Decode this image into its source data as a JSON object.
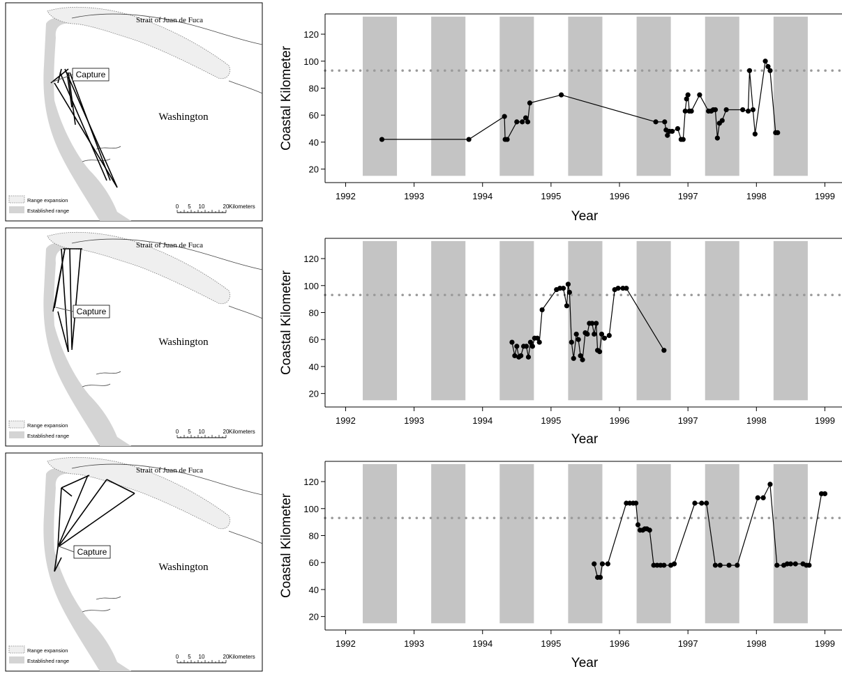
{
  "map": {
    "strait_label": "Strait of Juan de Fuca",
    "region_label": "Washington",
    "capture_label": "Capture",
    "legend_expansion": "Range expansion",
    "legend_established": "Established range",
    "scale_ticks": [
      "0",
      "5",
      "10",
      "20"
    ],
    "scale_unit": "Kilometers"
  },
  "chart_data": [
    {
      "type": "line",
      "xlabel": "Year",
      "ylabel": "Coastal Kilometer",
      "xlim": [
        1991.7,
        1999.25
      ],
      "ylim": [
        10,
        135
      ],
      "xticks": [
        1992,
        1993,
        1994,
        1995,
        1996,
        1997,
        1998,
        1999
      ],
      "yticks": [
        20,
        40,
        60,
        80,
        100,
        120
      ],
      "reference_line_y": 93,
      "shaded_periods": [
        [
          1992.25,
          1992.75
        ],
        [
          1993.25,
          1993.75
        ],
        [
          1994.25,
          1994.75
        ],
        [
          1995.25,
          1995.75
        ],
        [
          1996.25,
          1996.75
        ],
        [
          1997.25,
          1997.75
        ],
        [
          1998.25,
          1998.75
        ]
      ],
      "points": [
        [
          1992.53,
          42
        ],
        [
          1993.8,
          42
        ],
        [
          1994.32,
          59
        ],
        [
          1994.33,
          42
        ],
        [
          1994.36,
          42
        ],
        [
          1994.5,
          55
        ],
        [
          1994.58,
          55
        ],
        [
          1994.63,
          58
        ],
        [
          1994.66,
          55
        ],
        [
          1994.69,
          69
        ],
        [
          1995.15,
          75
        ],
        [
          1996.53,
          55
        ],
        [
          1996.66,
          55
        ],
        [
          1996.68,
          49
        ],
        [
          1996.7,
          45
        ],
        [
          1996.73,
          48
        ],
        [
          1996.77,
          48
        ],
        [
          1996.85,
          50
        ],
        [
          1996.9,
          42
        ],
        [
          1996.93,
          42
        ],
        [
          1996.96,
          63
        ],
        [
          1996.98,
          72
        ],
        [
          1997.0,
          75
        ],
        [
          1997.02,
          63
        ],
        [
          1997.05,
          63
        ],
        [
          1997.17,
          75
        ],
        [
          1997.3,
          63
        ],
        [
          1997.34,
          63
        ],
        [
          1997.37,
          64
        ],
        [
          1997.4,
          64
        ],
        [
          1997.43,
          43
        ],
        [
          1997.46,
          54
        ],
        [
          1997.5,
          56
        ],
        [
          1997.56,
          64
        ],
        [
          1997.8,
          64
        ],
        [
          1997.88,
          63
        ],
        [
          1997.9,
          93
        ],
        [
          1997.95,
          64
        ],
        [
          1997.98,
          46
        ],
        [
          1998.13,
          100
        ],
        [
          1998.17,
          96
        ],
        [
          1998.2,
          93
        ],
        [
          1998.28,
          47
        ],
        [
          1998.31,
          47
        ]
      ]
    },
    {
      "type": "line",
      "xlabel": "Year",
      "ylabel": "Coastal Kilometer",
      "xlim": [
        1991.7,
        1999.25
      ],
      "ylim": [
        10,
        135
      ],
      "xticks": [
        1992,
        1993,
        1994,
        1995,
        1996,
        1997,
        1998,
        1999
      ],
      "yticks": [
        20,
        40,
        60,
        80,
        100,
        120
      ],
      "reference_line_y": 93,
      "shaded_periods": [
        [
          1992.25,
          1992.75
        ],
        [
          1993.25,
          1993.75
        ],
        [
          1994.25,
          1994.75
        ],
        [
          1995.25,
          1995.75
        ],
        [
          1996.25,
          1996.75
        ],
        [
          1997.25,
          1997.75
        ],
        [
          1998.25,
          1998.75
        ]
      ],
      "points": [
        [
          1994.43,
          58
        ],
        [
          1994.47,
          48
        ],
        [
          1994.5,
          55
        ],
        [
          1994.53,
          47
        ],
        [
          1994.56,
          48
        ],
        [
          1994.6,
          55
        ],
        [
          1994.64,
          55
        ],
        [
          1994.67,
          47
        ],
        [
          1994.7,
          58
        ],
        [
          1994.73,
          55
        ],
        [
          1994.76,
          61
        ],
        [
          1994.8,
          61
        ],
        [
          1994.83,
          58
        ],
        [
          1994.87,
          82
        ],
        [
          1995.08,
          97
        ],
        [
          1995.13,
          98
        ],
        [
          1995.18,
          98
        ],
        [
          1995.23,
          85
        ],
        [
          1995.25,
          101
        ],
        [
          1995.27,
          95
        ],
        [
          1995.3,
          58
        ],
        [
          1995.33,
          46
        ],
        [
          1995.37,
          64
        ],
        [
          1995.4,
          60
        ],
        [
          1995.43,
          48
        ],
        [
          1995.46,
          45
        ],
        [
          1995.5,
          65
        ],
        [
          1995.53,
          64
        ],
        [
          1995.56,
          72
        ],
        [
          1995.6,
          72
        ],
        [
          1995.63,
          64
        ],
        [
          1995.66,
          72
        ],
        [
          1995.68,
          52
        ],
        [
          1995.71,
          51
        ],
        [
          1995.74,
          64
        ],
        [
          1995.78,
          61
        ],
        [
          1995.85,
          63
        ],
        [
          1995.93,
          97
        ],
        [
          1995.98,
          98
        ],
        [
          1996.05,
          98
        ],
        [
          1996.1,
          98
        ],
        [
          1996.65,
          52
        ]
      ]
    },
    {
      "type": "line",
      "xlabel": "Year",
      "ylabel": "Coastal Kilometer",
      "xlim": [
        1991.7,
        1999.25
      ],
      "ylim": [
        10,
        135
      ],
      "xticks": [
        1992,
        1993,
        1994,
        1995,
        1996,
        1997,
        1998,
        1999
      ],
      "yticks": [
        20,
        40,
        60,
        80,
        100,
        120
      ],
      "reference_line_y": 93,
      "shaded_periods": [
        [
          1992.25,
          1992.75
        ],
        [
          1993.25,
          1993.75
        ],
        [
          1994.25,
          1994.75
        ],
        [
          1995.25,
          1995.75
        ],
        [
          1996.25,
          1996.75
        ],
        [
          1997.25,
          1997.75
        ],
        [
          1998.25,
          1998.75
        ]
      ],
      "points": [
        [
          1995.63,
          59
        ],
        [
          1995.68,
          49
        ],
        [
          1995.72,
          49
        ],
        [
          1995.75,
          59
        ],
        [
          1995.83,
          59
        ],
        [
          1996.1,
          104
        ],
        [
          1996.15,
          104
        ],
        [
          1996.2,
          104
        ],
        [
          1996.24,
          104
        ],
        [
          1996.27,
          88
        ],
        [
          1996.3,
          84
        ],
        [
          1996.34,
          84
        ],
        [
          1996.37,
          85
        ],
        [
          1996.4,
          85
        ],
        [
          1996.44,
          84
        ],
        [
          1996.5,
          58
        ],
        [
          1996.55,
          58
        ],
        [
          1996.6,
          58
        ],
        [
          1996.65,
          58
        ],
        [
          1996.75,
          58
        ],
        [
          1996.8,
          59
        ],
        [
          1997.1,
          104
        ],
        [
          1997.2,
          104
        ],
        [
          1997.27,
          104
        ],
        [
          1997.4,
          58
        ],
        [
          1997.47,
          58
        ],
        [
          1997.6,
          58
        ],
        [
          1997.72,
          58
        ],
        [
          1998.02,
          108
        ],
        [
          1998.1,
          108
        ],
        [
          1998.2,
          118
        ],
        [
          1998.3,
          58
        ],
        [
          1998.4,
          58
        ],
        [
          1998.45,
          59
        ],
        [
          1998.5,
          59
        ],
        [
          1998.57,
          59
        ],
        [
          1998.68,
          59
        ],
        [
          1998.73,
          58
        ],
        [
          1998.77,
          58
        ],
        [
          1998.95,
          111
        ],
        [
          1999.0,
          111
        ]
      ]
    }
  ]
}
